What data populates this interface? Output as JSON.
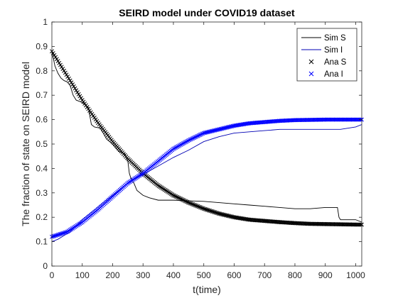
{
  "chart_data": {
    "type": "line",
    "title": "SEIRD model under COVID19 dataset",
    "xlabel": "t(time)",
    "ylabel": "The fraction of state on SEIRD model",
    "xlim": [
      0,
      1020
    ],
    "ylim": [
      0,
      1
    ],
    "x_ticks": [
      "0",
      "100",
      "200",
      "300",
      "400",
      "500",
      "600",
      "700",
      "800",
      "900",
      "1000"
    ],
    "y_ticks": [
      "0",
      "0.1",
      "0.2",
      "0.3",
      "0.4",
      "0.5",
      "0.6",
      "0.7",
      "0.8",
      "0.9",
      "1"
    ],
    "legend_position": "top-right",
    "grid": false,
    "series": [
      {
        "name": "Sim S",
        "style": "line",
        "color": "#000000",
        "x": [
          0,
          5,
          10,
          20,
          30,
          40,
          50,
          60,
          70,
          80,
          100,
          120,
          130,
          140,
          160,
          180,
          200,
          220,
          240,
          250,
          255,
          260,
          270,
          280,
          300,
          320,
          350,
          400,
          500,
          600,
          650,
          700,
          750,
          800,
          850,
          900,
          940,
          945,
          950,
          1000,
          1020
        ],
        "y": [
          0.88,
          0.85,
          0.82,
          0.79,
          0.77,
          0.76,
          0.755,
          0.74,
          0.7,
          0.68,
          0.67,
          0.65,
          0.58,
          0.57,
          0.565,
          0.52,
          0.5,
          0.47,
          0.46,
          0.43,
          0.38,
          0.36,
          0.34,
          0.31,
          0.29,
          0.28,
          0.27,
          0.27,
          0.265,
          0.255,
          0.25,
          0.245,
          0.24,
          0.235,
          0.235,
          0.24,
          0.24,
          0.2,
          0.19,
          0.19,
          0.18
        ]
      },
      {
        "name": "Sim I",
        "style": "line",
        "color": "#0000b4",
        "x": [
          0,
          20,
          40,
          60,
          80,
          100,
          150,
          200,
          250,
          300,
          350,
          400,
          450,
          500,
          550,
          600,
          650,
          700,
          750,
          800,
          850,
          900,
          950,
          1000,
          1020
        ],
        "y": [
          0.1,
          0.11,
          0.125,
          0.14,
          0.165,
          0.19,
          0.24,
          0.29,
          0.34,
          0.375,
          0.41,
          0.445,
          0.475,
          0.51,
          0.53,
          0.545,
          0.55,
          0.555,
          0.56,
          0.56,
          0.56,
          0.56,
          0.56,
          0.57,
          0.58
        ]
      },
      {
        "name": "Ana S",
        "style": "marker-x",
        "color": "#000000",
        "x": [
          0,
          50,
          100,
          150,
          200,
          250,
          300,
          350,
          400,
          450,
          500,
          550,
          600,
          650,
          700,
          750,
          800,
          850,
          900,
          950,
          1000,
          1020
        ],
        "y": [
          0.88,
          0.78,
          0.68,
          0.59,
          0.51,
          0.44,
          0.38,
          0.33,
          0.29,
          0.26,
          0.235,
          0.215,
          0.2,
          0.19,
          0.185,
          0.18,
          0.176,
          0.173,
          0.172,
          0.171,
          0.17,
          0.17
        ]
      },
      {
        "name": "Ana I",
        "style": "marker-x",
        "color": "#0000ff",
        "x": [
          0,
          50,
          100,
          150,
          200,
          250,
          300,
          350,
          400,
          450,
          500,
          550,
          600,
          650,
          700,
          750,
          800,
          850,
          900,
          950,
          1000,
          1020
        ],
        "y": [
          0.12,
          0.14,
          0.18,
          0.23,
          0.285,
          0.34,
          0.38,
          0.43,
          0.48,
          0.515,
          0.545,
          0.56,
          0.575,
          0.585,
          0.59,
          0.595,
          0.598,
          0.599,
          0.6,
          0.6,
          0.6,
          0.6
        ]
      }
    ]
  }
}
